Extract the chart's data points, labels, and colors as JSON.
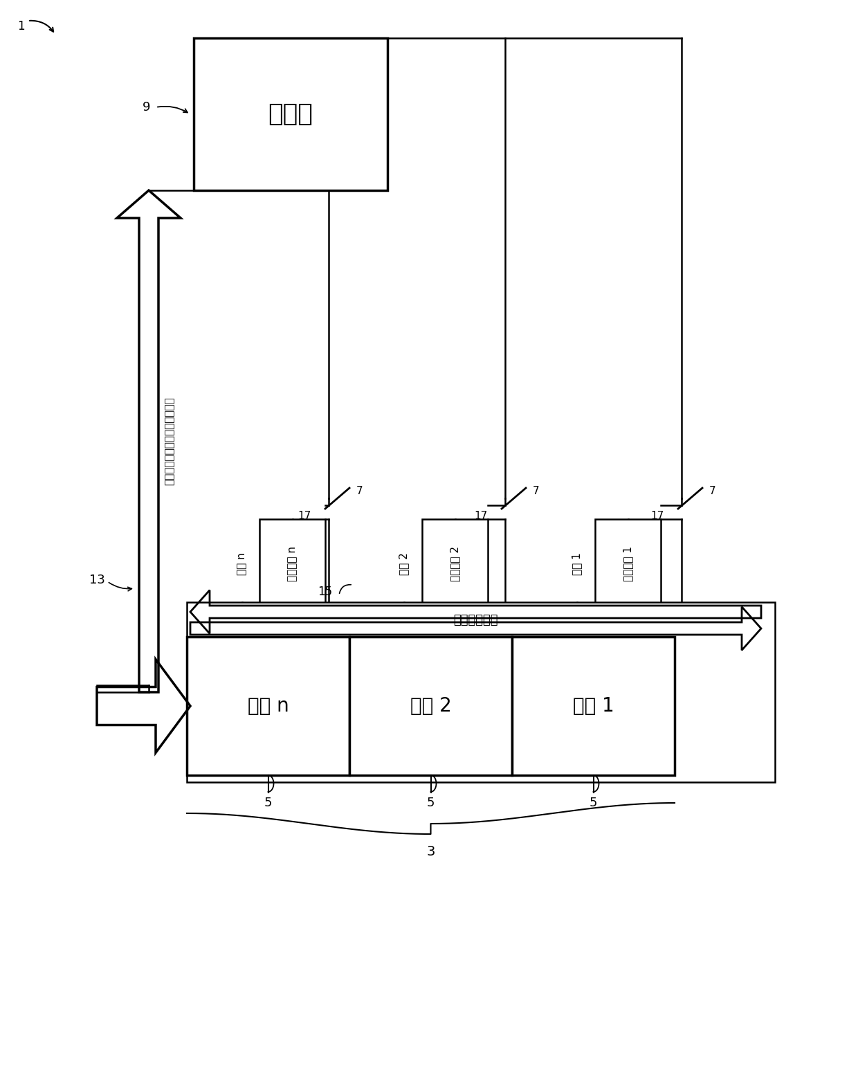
{
  "bg_color": "#ffffff",
  "fig_w": 12.4,
  "fig_h": 15.69,
  "dpi": 100,
  "charger_label": "充电器",
  "charger_ref": "9",
  "bat_label_n": "电池 n",
  "bat_label_2": "电池 2",
  "bat_label_1": "电池 1",
  "bat_ref": "5",
  "group_ref": "3",
  "comm_label_n": "通信元件 n",
  "comm_label_2": "通信元件 2",
  "comm_label_1": "通信元件 1",
  "cmd_label_n": "指令 n",
  "cmd_label_2": "指令 2",
  "cmd_label_1": "指令 1",
  "arrow_info_label": "电池回路信息",
  "comm_info_label": "电子电路板与充电器之间的通信",
  "ref_13": "13",
  "ref_15": "15",
  "fig_ref": "1",
  "ref_17": "17",
  "ref_7": "7"
}
